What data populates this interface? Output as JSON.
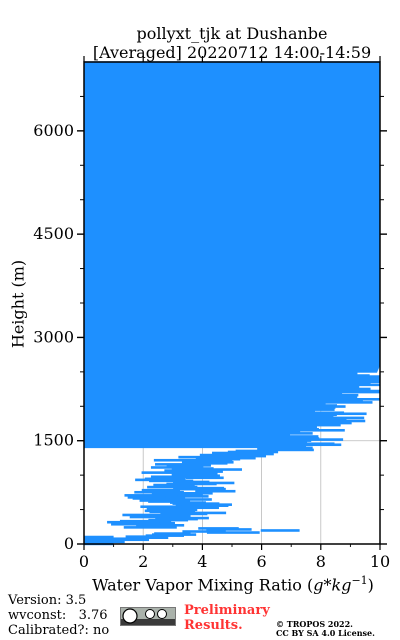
{
  "chart_data": {
    "type": "line",
    "title_line1": "pollyxt_tjk at Dushanbe",
    "title_line2": "[Averaged] 20220712 14:00-14:59",
    "xlabel_text": "Water Vapor Mixing Ratio (",
    "xlabel_math": "g*kg",
    "xlabel_exp": "−1",
    "xlabel_close": ")",
    "ylabel": "Height (m)",
    "xlim": [
      0,
      10
    ],
    "ylim": [
      0,
      7000
    ],
    "xticks": [
      "0",
      "2",
      "4",
      "6",
      "8",
      "10"
    ],
    "yticks": [
      "0",
      "1500",
      "3000",
      "4500",
      "6000"
    ],
    "grid": true,
    "series": [
      {
        "color": "#1e90ff",
        "points": [
          [
            1.0,
            0
          ],
          [
            3.0,
            120
          ],
          [
            6.5,
            200
          ],
          [
            3.2,
            250
          ],
          [
            3.6,
            350
          ],
          [
            3.8,
            450
          ],
          [
            4.1,
            550
          ],
          [
            3.9,
            650
          ],
          [
            4.2,
            750
          ],
          [
            4.5,
            850
          ],
          [
            4.0,
            950
          ],
          [
            4.8,
            1050
          ],
          [
            5.0,
            1150
          ],
          [
            4.9,
            1250
          ],
          [
            6.5,
            1350
          ],
          [
            8.0,
            1450
          ],
          [
            7.5,
            1550
          ],
          [
            7.8,
            1650
          ],
          [
            8.5,
            1750
          ],
          [
            8.8,
            1850
          ],
          [
            8.5,
            1950
          ],
          [
            9.2,
            2050
          ],
          [
            9.5,
            2150
          ],
          [
            9.6,
            2250
          ],
          [
            9.8,
            2400
          ],
          [
            10.0,
            2600
          ],
          [
            10.0,
            3000
          ],
          [
            10.0,
            3500
          ],
          [
            10.0,
            4000
          ],
          [
            10.0,
            4500
          ],
          [
            10.0,
            5000
          ],
          [
            10.0,
            5500
          ],
          [
            10.0,
            6000
          ],
          [
            10.0,
            6500
          ],
          [
            10.0,
            7000
          ]
        ]
      }
    ]
  },
  "footer": {
    "version": "Version: 3.5",
    "wvconst": "wvconst:   3.76",
    "calibrated": "Calibrated?: no",
    "preliminary_line1": "Preliminary",
    "preliminary_line2": "Results.",
    "copyright_line1": "© TROPOS 2022.",
    "copyright_line2": "CC BY SA 4.0 License."
  }
}
